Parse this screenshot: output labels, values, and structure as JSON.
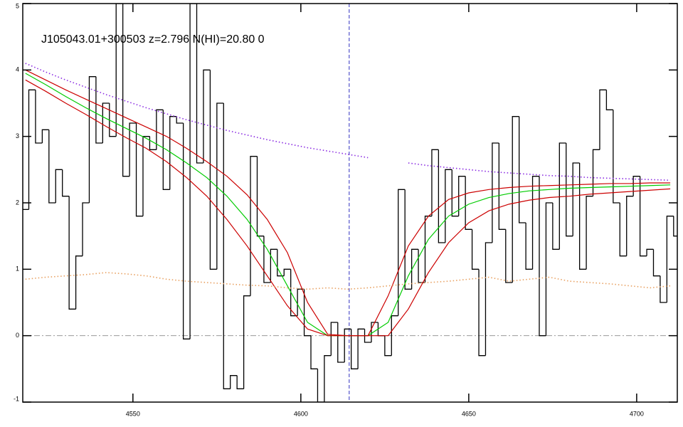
{
  "chart_data": {
    "type": "spectrum",
    "title": "J105043.01+300503 z=2.796 N(HI)=20.80 0",
    "xlim": [
      4517.2,
      4712.1
    ],
    "ylim": [
      -1,
      5
    ],
    "xticks": [
      4550,
      4600,
      4650,
      4700
    ],
    "yticks": [
      -1,
      0,
      1,
      2,
      3,
      4,
      5
    ],
    "reference_lines": {
      "x": 4614.4,
      "x_color": "#3030c0",
      "y": 0,
      "y_color": "#999999"
    },
    "series": [
      {
        "style": "step",
        "color": "#000000",
        "x": [
          4518,
          4520,
          4522,
          4524,
          4526,
          4528,
          4530,
          4532,
          4534,
          4536,
          4538,
          4540,
          4542,
          4544,
          4546,
          4548,
          4550,
          4552,
          4554,
          4556,
          4558,
          4560,
          4562,
          4564,
          4566,
          4568,
          4570,
          4572,
          4574,
          4576,
          4578,
          4580,
          4582,
          4584,
          4586,
          4588,
          4590,
          4592,
          4594,
          4596,
          4598,
          4600,
          4602,
          4604,
          4606,
          4608,
          4610,
          4612,
          4614,
          4616,
          4618,
          4620,
          4622,
          4624,
          4626,
          4628,
          4630,
          4632,
          4634,
          4636,
          4638,
          4640,
          4642,
          4644,
          4646,
          4648,
          4650,
          4652,
          4654,
          4656,
          4658,
          4660,
          4662,
          4664,
          4666,
          4668,
          4670,
          4672,
          4674,
          4676,
          4678,
          4680,
          4682,
          4684,
          4686,
          4688,
          4690,
          4692,
          4694,
          4696,
          4698,
          4700,
          4702,
          4704,
          4706,
          4708,
          4710,
          4712
        ],
        "values": [
          1.9,
          3.7,
          2.9,
          3.1,
          2.0,
          2.5,
          2.1,
          0.4,
          1.2,
          2.0,
          3.9,
          2.9,
          3.5,
          3.0,
          5.0,
          2.4,
          3.2,
          1.8,
          3.0,
          2.8,
          3.4,
          2.2,
          3.3,
          3.2,
          -0.05,
          5.0,
          2.6,
          4.0,
          1.0,
          3.5,
          -0.8,
          -0.6,
          -0.8,
          0.6,
          2.7,
          1.5,
          0.8,
          1.3,
          0.9,
          1.0,
          0.3,
          0.7,
          0.0,
          -0.5,
          -1.0,
          -0.3,
          0.2,
          -0.4,
          0.1,
          -0.5,
          0.1,
          -0.1,
          0.2,
          0.0,
          -0.3,
          0.3,
          2.2,
          0.7,
          1.3,
          0.8,
          1.8,
          2.8,
          1.4,
          2.5,
          1.8,
          2.4,
          1.6,
          1.0,
          -0.3,
          1.4,
          2.9,
          1.6,
          0.8,
          3.3,
          1.7,
          1.0,
          2.4,
          0.0,
          2.0,
          1.3,
          2.9,
          1.5,
          2.6,
          1.0,
          2.1,
          2.8,
          3.7,
          3.4,
          2.0,
          1.2,
          2.1,
          2.4,
          1.2,
          1.3,
          0.9,
          0.5,
          1.8,
          1.5
        ]
      },
      {
        "style": "line",
        "color": "#00cc00",
        "x": [
          4518,
          4524,
          4530,
          4536,
          4542,
          4548,
          4554,
          4560,
          4566,
          4572,
          4578,
          4584,
          4590,
          4596,
          4602,
          4608,
          4614,
          4620,
          4626,
          4632,
          4638,
          4644,
          4650,
          4656,
          4662,
          4668,
          4674,
          4680,
          4686,
          4692,
          4698,
          4704,
          4710
        ],
        "values": [
          3.95,
          3.78,
          3.6,
          3.43,
          3.27,
          3.12,
          2.97,
          2.8,
          2.6,
          2.38,
          2.1,
          1.75,
          1.3,
          0.75,
          0.2,
          0.0,
          0.0,
          0.0,
          0.2,
          0.9,
          1.45,
          1.8,
          1.98,
          2.08,
          2.14,
          2.18,
          2.2,
          2.22,
          2.23,
          2.24,
          2.25,
          2.26,
          2.27
        ]
      },
      {
        "style": "line",
        "color": "#cc0000",
        "x": [
          4518,
          4524,
          4530,
          4536,
          4542,
          4548,
          4554,
          4560,
          4566,
          4572,
          4578,
          4584,
          4590,
          4596,
          4602,
          4608,
          4614,
          4620,
          4626,
          4632,
          4638,
          4644,
          4650,
          4656,
          4662,
          4668,
          4674,
          4680,
          4686,
          4692,
          4698,
          4704,
          4710
        ],
        "values": [
          4.0,
          3.85,
          3.7,
          3.56,
          3.42,
          3.28,
          3.14,
          3.0,
          2.82,
          2.62,
          2.4,
          2.12,
          1.75,
          1.25,
          0.5,
          0.02,
          0.0,
          0.0,
          0.6,
          1.35,
          1.8,
          2.05,
          2.15,
          2.2,
          2.23,
          2.25,
          2.26,
          2.27,
          2.28,
          2.29,
          2.29,
          2.3,
          2.3
        ]
      },
      {
        "style": "line",
        "color": "#cc0000",
        "x": [
          4518,
          4524,
          4530,
          4536,
          4542,
          4548,
          4554,
          4560,
          4566,
          4572,
          4578,
          4584,
          4590,
          4596,
          4602,
          4608,
          4614,
          4620,
          4626,
          4632,
          4638,
          4644,
          4650,
          4656,
          4662,
          4668,
          4674,
          4680,
          4686,
          4692,
          4698,
          4704,
          4710
        ],
        "values": [
          3.85,
          3.68,
          3.5,
          3.33,
          3.15,
          2.98,
          2.82,
          2.62,
          2.38,
          2.1,
          1.75,
          1.35,
          0.9,
          0.45,
          0.1,
          0.0,
          0.0,
          0.0,
          0.0,
          0.4,
          0.95,
          1.4,
          1.7,
          1.88,
          1.98,
          2.04,
          2.08,
          2.1,
          2.13,
          2.15,
          2.17,
          2.19,
          2.21
        ]
      },
      {
        "style": "dotted",
        "color": "#8a2be2",
        "x": [
          4518,
          4524,
          4530,
          4536,
          4542,
          4548,
          4554,
          4560,
          4566,
          4572,
          4578,
          4584,
          4590,
          4596,
          4602,
          4608,
          4614,
          4620,
          4626,
          4632,
          4638,
          4644,
          4650,
          4656,
          4662,
          4668,
          4674,
          4680,
          4686,
          4692,
          4698,
          4704,
          4710
        ],
        "values": [
          4.1,
          3.97,
          3.85,
          3.74,
          3.63,
          3.53,
          3.43,
          3.34,
          3.25,
          3.17,
          3.09,
          3.02,
          2.95,
          2.89,
          2.83,
          2.78,
          2.73,
          2.68,
          null,
          2.6,
          2.56,
          2.53,
          2.5,
          2.47,
          2.45,
          2.43,
          2.41,
          2.4,
          2.38,
          2.37,
          2.36,
          2.35,
          2.34
        ]
      },
      {
        "style": "dotted",
        "color": "#e8a060",
        "x": [
          4518,
          4524,
          4530,
          4536,
          4542,
          4548,
          4554,
          4560,
          4566,
          4572,
          4578,
          4584,
          4590,
          4596,
          4602,
          4608,
          4614,
          4620,
          4626,
          4632,
          4638,
          4644,
          4650,
          4656,
          4662,
          4668,
          4674,
          4680,
          4686,
          4692,
          4698,
          4704,
          4710
        ],
        "values": [
          0.85,
          0.88,
          0.9,
          0.92,
          0.95,
          0.93,
          0.9,
          0.85,
          0.82,
          0.8,
          0.78,
          0.76,
          0.75,
          0.72,
          0.7,
          0.72,
          0.7,
          0.72,
          0.75,
          0.78,
          0.8,
          0.82,
          0.85,
          0.88,
          0.82,
          0.85,
          0.88,
          0.82,
          0.8,
          0.78,
          0.75,
          0.72,
          0.75
        ]
      }
    ]
  }
}
